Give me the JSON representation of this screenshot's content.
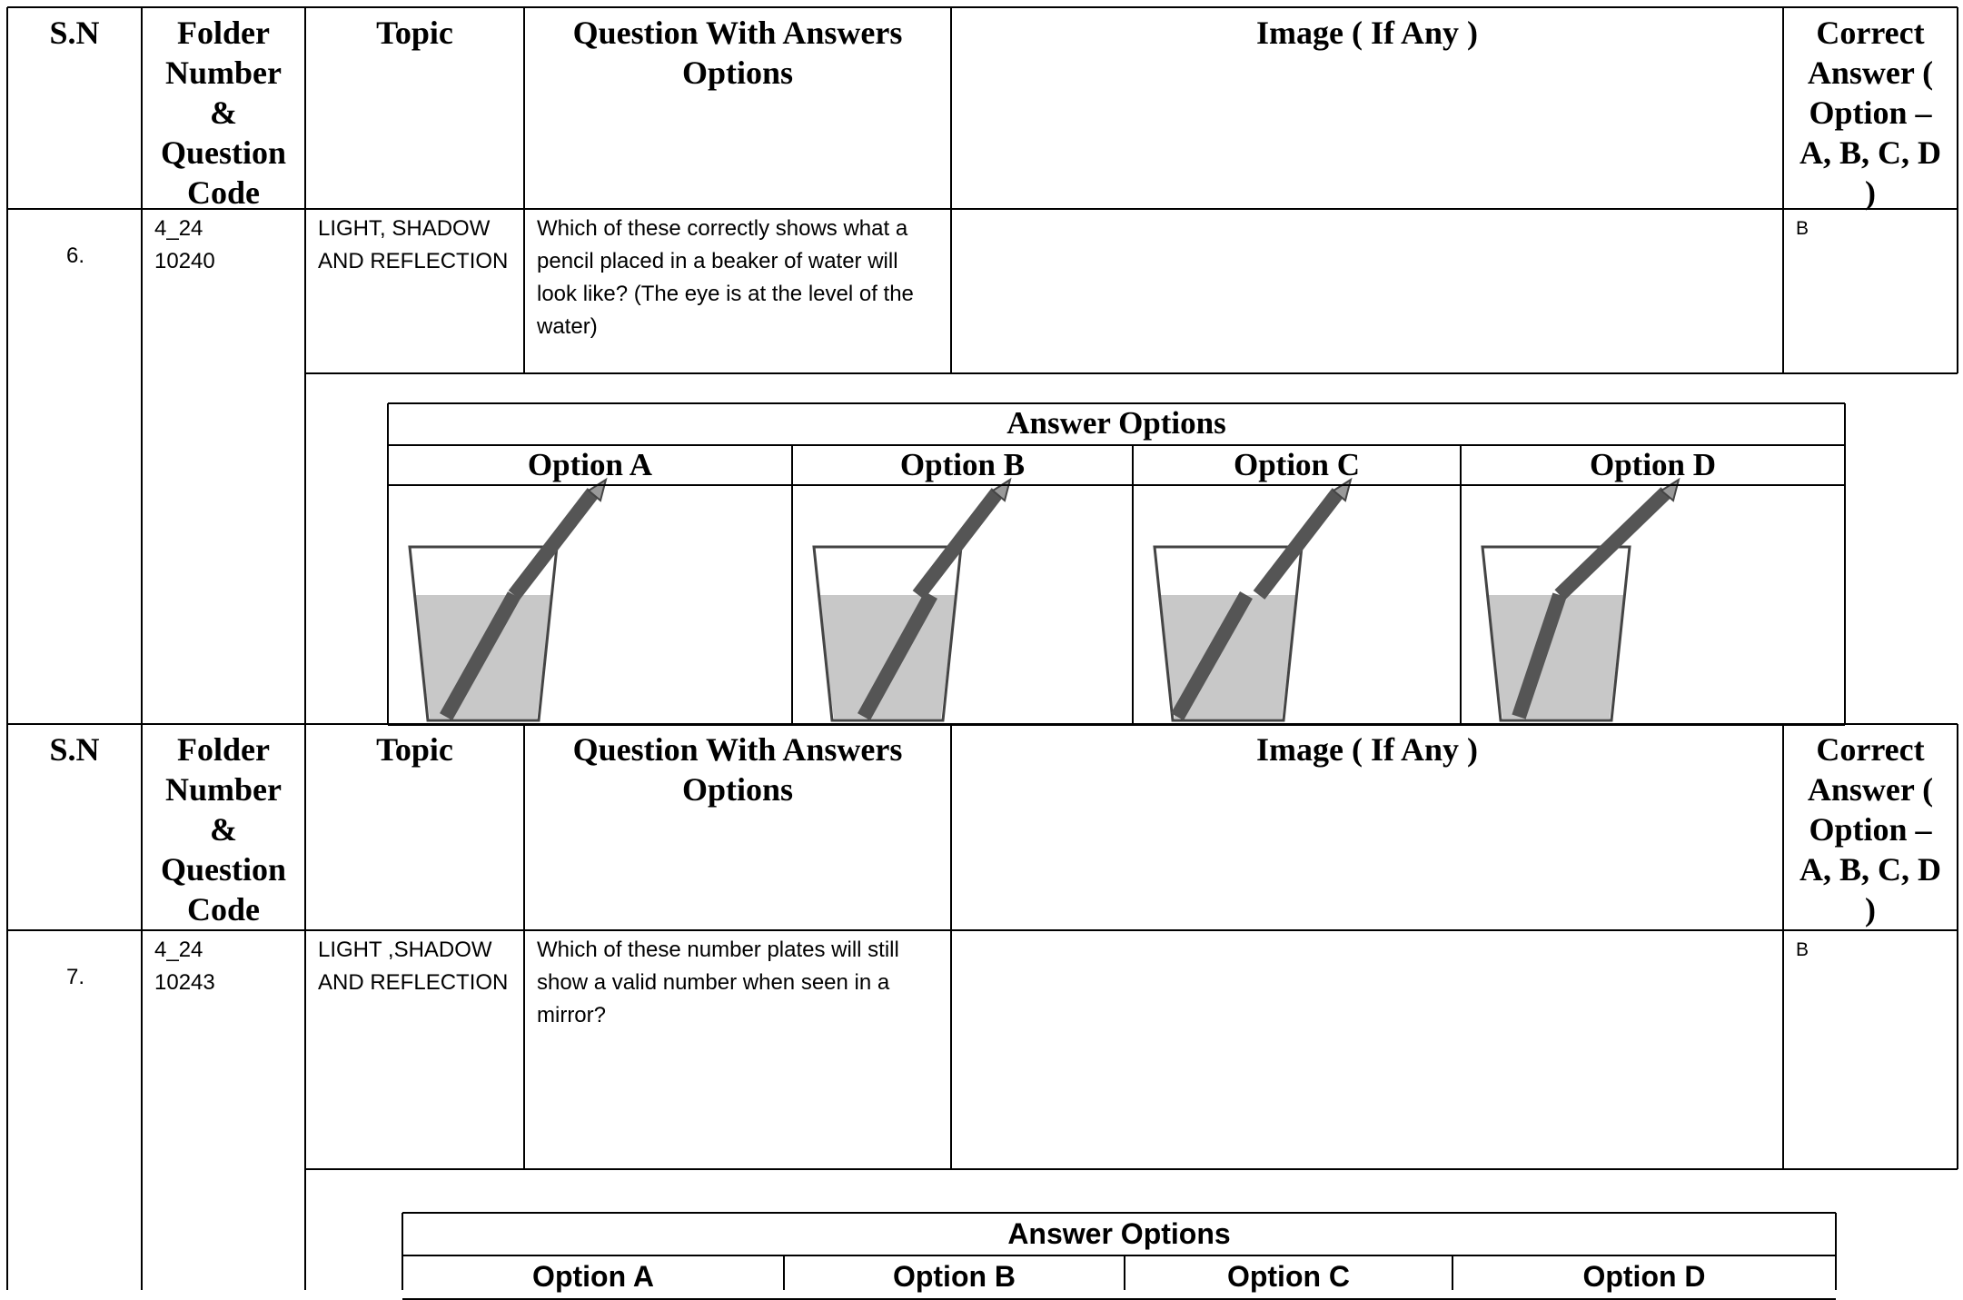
{
  "blocks": [
    {
      "header": {
        "sn": "S.N",
        "folder": "Folder Number & Question Code",
        "topic": "Topic",
        "question": "Question With Answers Options",
        "image": "Image ( If Any )",
        "answer": "Correct Answer ( Option – A, B, C, D )"
      },
      "row": {
        "sn": "6.",
        "folder_number": "4_24",
        "question_code": "10240",
        "topic": "LIGHT, SHADOW AND REFLECTION",
        "question": "Which of these correctly shows what a pencil placed in a beaker of water will look like? (The eye is at the level of the water)",
        "answer": "B"
      },
      "answer_options": {
        "title": "Answer Options",
        "options": [
          "Option A",
          "Option B",
          "Option C",
          "Option D"
        ]
      }
    },
    {
      "header": {
        "sn": "S.N",
        "folder": "Folder Number & Question Code",
        "topic": "Topic",
        "question": "Question With Answers Options",
        "image": "Image ( If Any )",
        "answer": "Correct Answer ( Option – A, B, C, D )"
      },
      "row": {
        "sn": "7.",
        "folder_number": "4_24",
        "question_code": "10243",
        "topic": "LIGHT ,SHADOW AND REFLECTION",
        "question": "Which of these number plates will still show a valid number when seen in a mirror?",
        "answer": "B"
      },
      "answer_options": {
        "title": "Answer Options",
        "options": [
          "Option A",
          "Option B",
          "Option C",
          "Option D"
        ]
      }
    }
  ]
}
